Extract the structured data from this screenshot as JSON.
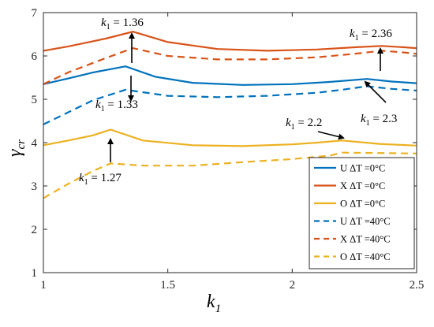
{
  "chart_data": {
    "type": "line",
    "xlabel": "k",
    "xlabel_sub": "1",
    "ylabel": "γ",
    "ylabel_sub": "cr",
    "xlim": [
      1,
      2.5
    ],
    "ylim": [
      1,
      7
    ],
    "xticks": [
      "1",
      "1.5",
      "2",
      "2.5"
    ],
    "yticks": [
      "1",
      "2",
      "3",
      "4",
      "5",
      "6",
      "7"
    ],
    "grid": false,
    "legend_position": "bottom-right",
    "series": [
      {
        "name": "U ΔT =0°C",
        "color": "#0072bd",
        "dash": "solid",
        "points": [
          [
            1,
            5.35
          ],
          [
            1.1,
            5.48
          ],
          [
            1.2,
            5.62
          ],
          [
            1.33,
            5.76
          ],
          [
            1.45,
            5.52
          ],
          [
            1.6,
            5.38
          ],
          [
            1.8,
            5.33
          ],
          [
            2.0,
            5.35
          ],
          [
            2.15,
            5.4
          ],
          [
            2.3,
            5.47
          ],
          [
            2.4,
            5.41
          ],
          [
            2.5,
            5.37
          ]
        ]
      },
      {
        "name": "X ΔT =0°C",
        "color": "#d95319",
        "dash": "solid",
        "points": [
          [
            1,
            6.12
          ],
          [
            1.1,
            6.22
          ],
          [
            1.25,
            6.4
          ],
          [
            1.36,
            6.56
          ],
          [
            1.5,
            6.32
          ],
          [
            1.7,
            6.16
          ],
          [
            1.9,
            6.12
          ],
          [
            2.1,
            6.15
          ],
          [
            2.25,
            6.2
          ],
          [
            2.36,
            6.23
          ],
          [
            2.45,
            6.2
          ],
          [
            2.5,
            6.18
          ]
        ]
      },
      {
        "name": "O ΔT =0°C",
        "color": "#edb120",
        "dash": "solid",
        "points": [
          [
            1,
            3.94
          ],
          [
            1.1,
            4.05
          ],
          [
            1.2,
            4.17
          ],
          [
            1.27,
            4.3
          ],
          [
            1.4,
            4.05
          ],
          [
            1.6,
            3.94
          ],
          [
            1.8,
            3.92
          ],
          [
            2.0,
            3.96
          ],
          [
            2.1,
            4.0
          ],
          [
            2.2,
            4.05
          ],
          [
            2.35,
            3.97
          ],
          [
            2.5,
            3.93
          ]
        ]
      },
      {
        "name": "U ΔT =40°C",
        "color": "#0072bd",
        "dash": "dashed",
        "points": [
          [
            1,
            4.42
          ],
          [
            1.1,
            4.7
          ],
          [
            1.2,
            4.98
          ],
          [
            1.33,
            5.22
          ],
          [
            1.5,
            5.08
          ],
          [
            1.7,
            5.05
          ],
          [
            1.9,
            5.08
          ],
          [
            2.1,
            5.15
          ],
          [
            2.2,
            5.22
          ],
          [
            2.3,
            5.3
          ],
          [
            2.4,
            5.24
          ],
          [
            2.5,
            5.2
          ]
        ]
      },
      {
        "name": "X ΔT =40°C",
        "color": "#d95319",
        "dash": "dashed",
        "points": [
          [
            1,
            5.35
          ],
          [
            1.1,
            5.62
          ],
          [
            1.25,
            5.95
          ],
          [
            1.36,
            6.18
          ],
          [
            1.5,
            6.0
          ],
          [
            1.7,
            5.92
          ],
          [
            1.9,
            5.92
          ],
          [
            2.1,
            5.97
          ],
          [
            2.25,
            6.05
          ],
          [
            2.36,
            6.12
          ],
          [
            2.45,
            6.08
          ],
          [
            2.5,
            6.05
          ]
        ]
      },
      {
        "name": "O ΔT =40°C",
        "color": "#edb120",
        "dash": "dashed",
        "points": [
          [
            1,
            2.72
          ],
          [
            1.1,
            3.05
          ],
          [
            1.2,
            3.35
          ],
          [
            1.27,
            3.52
          ],
          [
            1.4,
            3.47
          ],
          [
            1.6,
            3.47
          ],
          [
            1.8,
            3.55
          ],
          [
            2.0,
            3.62
          ],
          [
            2.15,
            3.7
          ],
          [
            2.2,
            3.77
          ],
          [
            2.35,
            3.76
          ],
          [
            2.5,
            3.75
          ]
        ]
      }
    ],
    "annotations": [
      {
        "label": "k",
        "sub": "1",
        "value": " = 1.36"
      },
      {
        "label": "k",
        "sub": "1",
        "value": " = 2.36"
      },
      {
        "label": "k",
        "sub": "1",
        "value": " = 1.33"
      },
      {
        "label": "k",
        "sub": "1",
        "value": " = 2.3"
      },
      {
        "label": "k",
        "sub": "1",
        "value": " = 2.2"
      },
      {
        "label": "k",
        "sub": "1",
        "value": " = 1.27"
      }
    ]
  }
}
